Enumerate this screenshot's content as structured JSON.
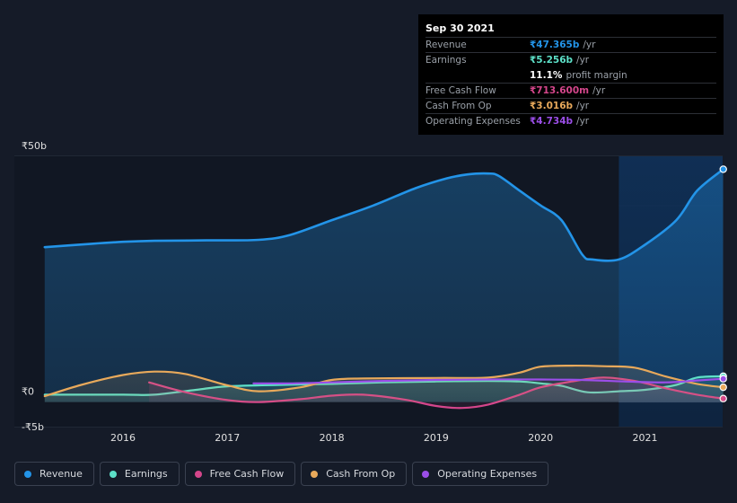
{
  "chart_data": {
    "type": "area",
    "ylim": [
      -5,
      50
    ],
    "y_tick_labels": [
      "₹50b",
      "₹0",
      "-₹5b"
    ],
    "x_tick_labels": [
      "2016",
      "2017",
      "2018",
      "2019",
      "2020",
      "2021"
    ],
    "forecast_shade_start": 2020.75,
    "series": [
      {
        "name": "Revenue",
        "color": "#2394e8",
        "fill": true,
        "x": [
          2015.25,
          2015.7,
          2016.0,
          2016.3,
          2016.8,
          2017.3,
          2017.6,
          2018.0,
          2018.4,
          2018.8,
          2019.1,
          2019.3,
          2019.5,
          2019.6,
          2019.8,
          2020.0,
          2020.2,
          2020.4,
          2020.5,
          2020.75,
          2021.0,
          2021.3,
          2021.5,
          2021.75
        ],
        "values": [
          31.5,
          32.2,
          32.6,
          32.8,
          32.9,
          33.0,
          34.0,
          37.0,
          40.0,
          43.5,
          45.5,
          46.3,
          46.5,
          46.0,
          43.0,
          40.0,
          37.0,
          30.0,
          29.0,
          29.0,
          32.0,
          37.0,
          43.0,
          47.365
        ]
      },
      {
        "name": "Earnings",
        "color": "#5de0c8",
        "fill": true,
        "x": [
          2015.25,
          2016.0,
          2016.3,
          2016.7,
          2017.0,
          2017.5,
          2018.0,
          2018.5,
          2019.0,
          2019.5,
          2019.8,
          2020.0,
          2020.2,
          2020.45,
          2020.75,
          2021.0,
          2021.3,
          2021.5,
          2021.75
        ],
        "values": [
          1.5,
          1.5,
          1.5,
          2.5,
          3.2,
          3.5,
          3.7,
          4.0,
          4.2,
          4.3,
          4.2,
          3.8,
          3.3,
          2.0,
          2.2,
          2.5,
          3.5,
          5.0,
          5.256
        ]
      },
      {
        "name": "Free Cash Flow",
        "color": "#d4468b",
        "fill": true,
        "x": [
          2016.25,
          2016.6,
          2017.0,
          2017.3,
          2017.7,
          2018.0,
          2018.3,
          2018.7,
          2019.0,
          2019.25,
          2019.5,
          2019.8,
          2020.0,
          2020.3,
          2020.6,
          2020.9,
          2021.2,
          2021.5,
          2021.75
        ],
        "values": [
          4.0,
          2.0,
          0.4,
          0.0,
          0.6,
          1.3,
          1.5,
          0.5,
          -0.8,
          -1.2,
          -0.5,
          1.5,
          3.0,
          4.2,
          5.0,
          4.3,
          2.8,
          1.5,
          0.714
        ]
      },
      {
        "name": "Cash From Op",
        "color": "#e8a95b",
        "fill": true,
        "x": [
          2015.25,
          2015.6,
          2016.0,
          2016.3,
          2016.6,
          2017.0,
          2017.3,
          2017.7,
          2018.0,
          2018.3,
          2019.0,
          2019.5,
          2019.8,
          2020.0,
          2020.3,
          2020.6,
          2020.9,
          2021.2,
          2021.5,
          2021.75
        ],
        "values": [
          1.2,
          3.5,
          5.5,
          6.2,
          5.7,
          3.4,
          2.2,
          3.0,
          4.5,
          4.8,
          4.9,
          5.0,
          6.0,
          7.2,
          7.4,
          7.3,
          7.0,
          5.2,
          3.7,
          3.016
        ]
      },
      {
        "name": "Operating Expenses",
        "color": "#9b4ee8",
        "fill": false,
        "x": [
          2017.25,
          2017.6,
          2018.0,
          2018.5,
          2019.0,
          2019.5,
          2020.0,
          2020.4,
          2020.8,
          2021.2,
          2021.5,
          2021.75
        ],
        "values": [
          3.8,
          3.8,
          4.0,
          4.3,
          4.5,
          4.6,
          4.6,
          4.5,
          4.2,
          4.0,
          4.4,
          4.734
        ]
      }
    ]
  },
  "tooltip": {
    "date": "Sep 30 2021",
    "rows": [
      {
        "label": "Revenue",
        "value": "₹47.365b",
        "unit": "/yr",
        "color": "#2394e8"
      },
      {
        "label": "Earnings",
        "value": "₹5.256b",
        "unit": "/yr",
        "color": "#5de0c8"
      },
      {
        "label": "",
        "value": "11.1%",
        "unit": "profit margin",
        "color": "#ffffff"
      },
      {
        "label": "Free Cash Flow",
        "value": "₹713.600m",
        "unit": "/yr",
        "color": "#d4468b"
      },
      {
        "label": "Cash From Op",
        "value": "₹3.016b",
        "unit": "/yr",
        "color": "#e8a95b"
      },
      {
        "label": "Operating Expenses",
        "value": "₹4.734b",
        "unit": "/yr",
        "color": "#9b4ee8"
      }
    ]
  },
  "legend": [
    {
      "label": "Revenue",
      "color": "#2394e8"
    },
    {
      "label": "Earnings",
      "color": "#5de0c8"
    },
    {
      "label": "Free Cash Flow",
      "color": "#d4468b"
    },
    {
      "label": "Cash From Op",
      "color": "#e8a95b"
    },
    {
      "label": "Operating Expenses",
      "color": "#9b4ee8"
    }
  ]
}
